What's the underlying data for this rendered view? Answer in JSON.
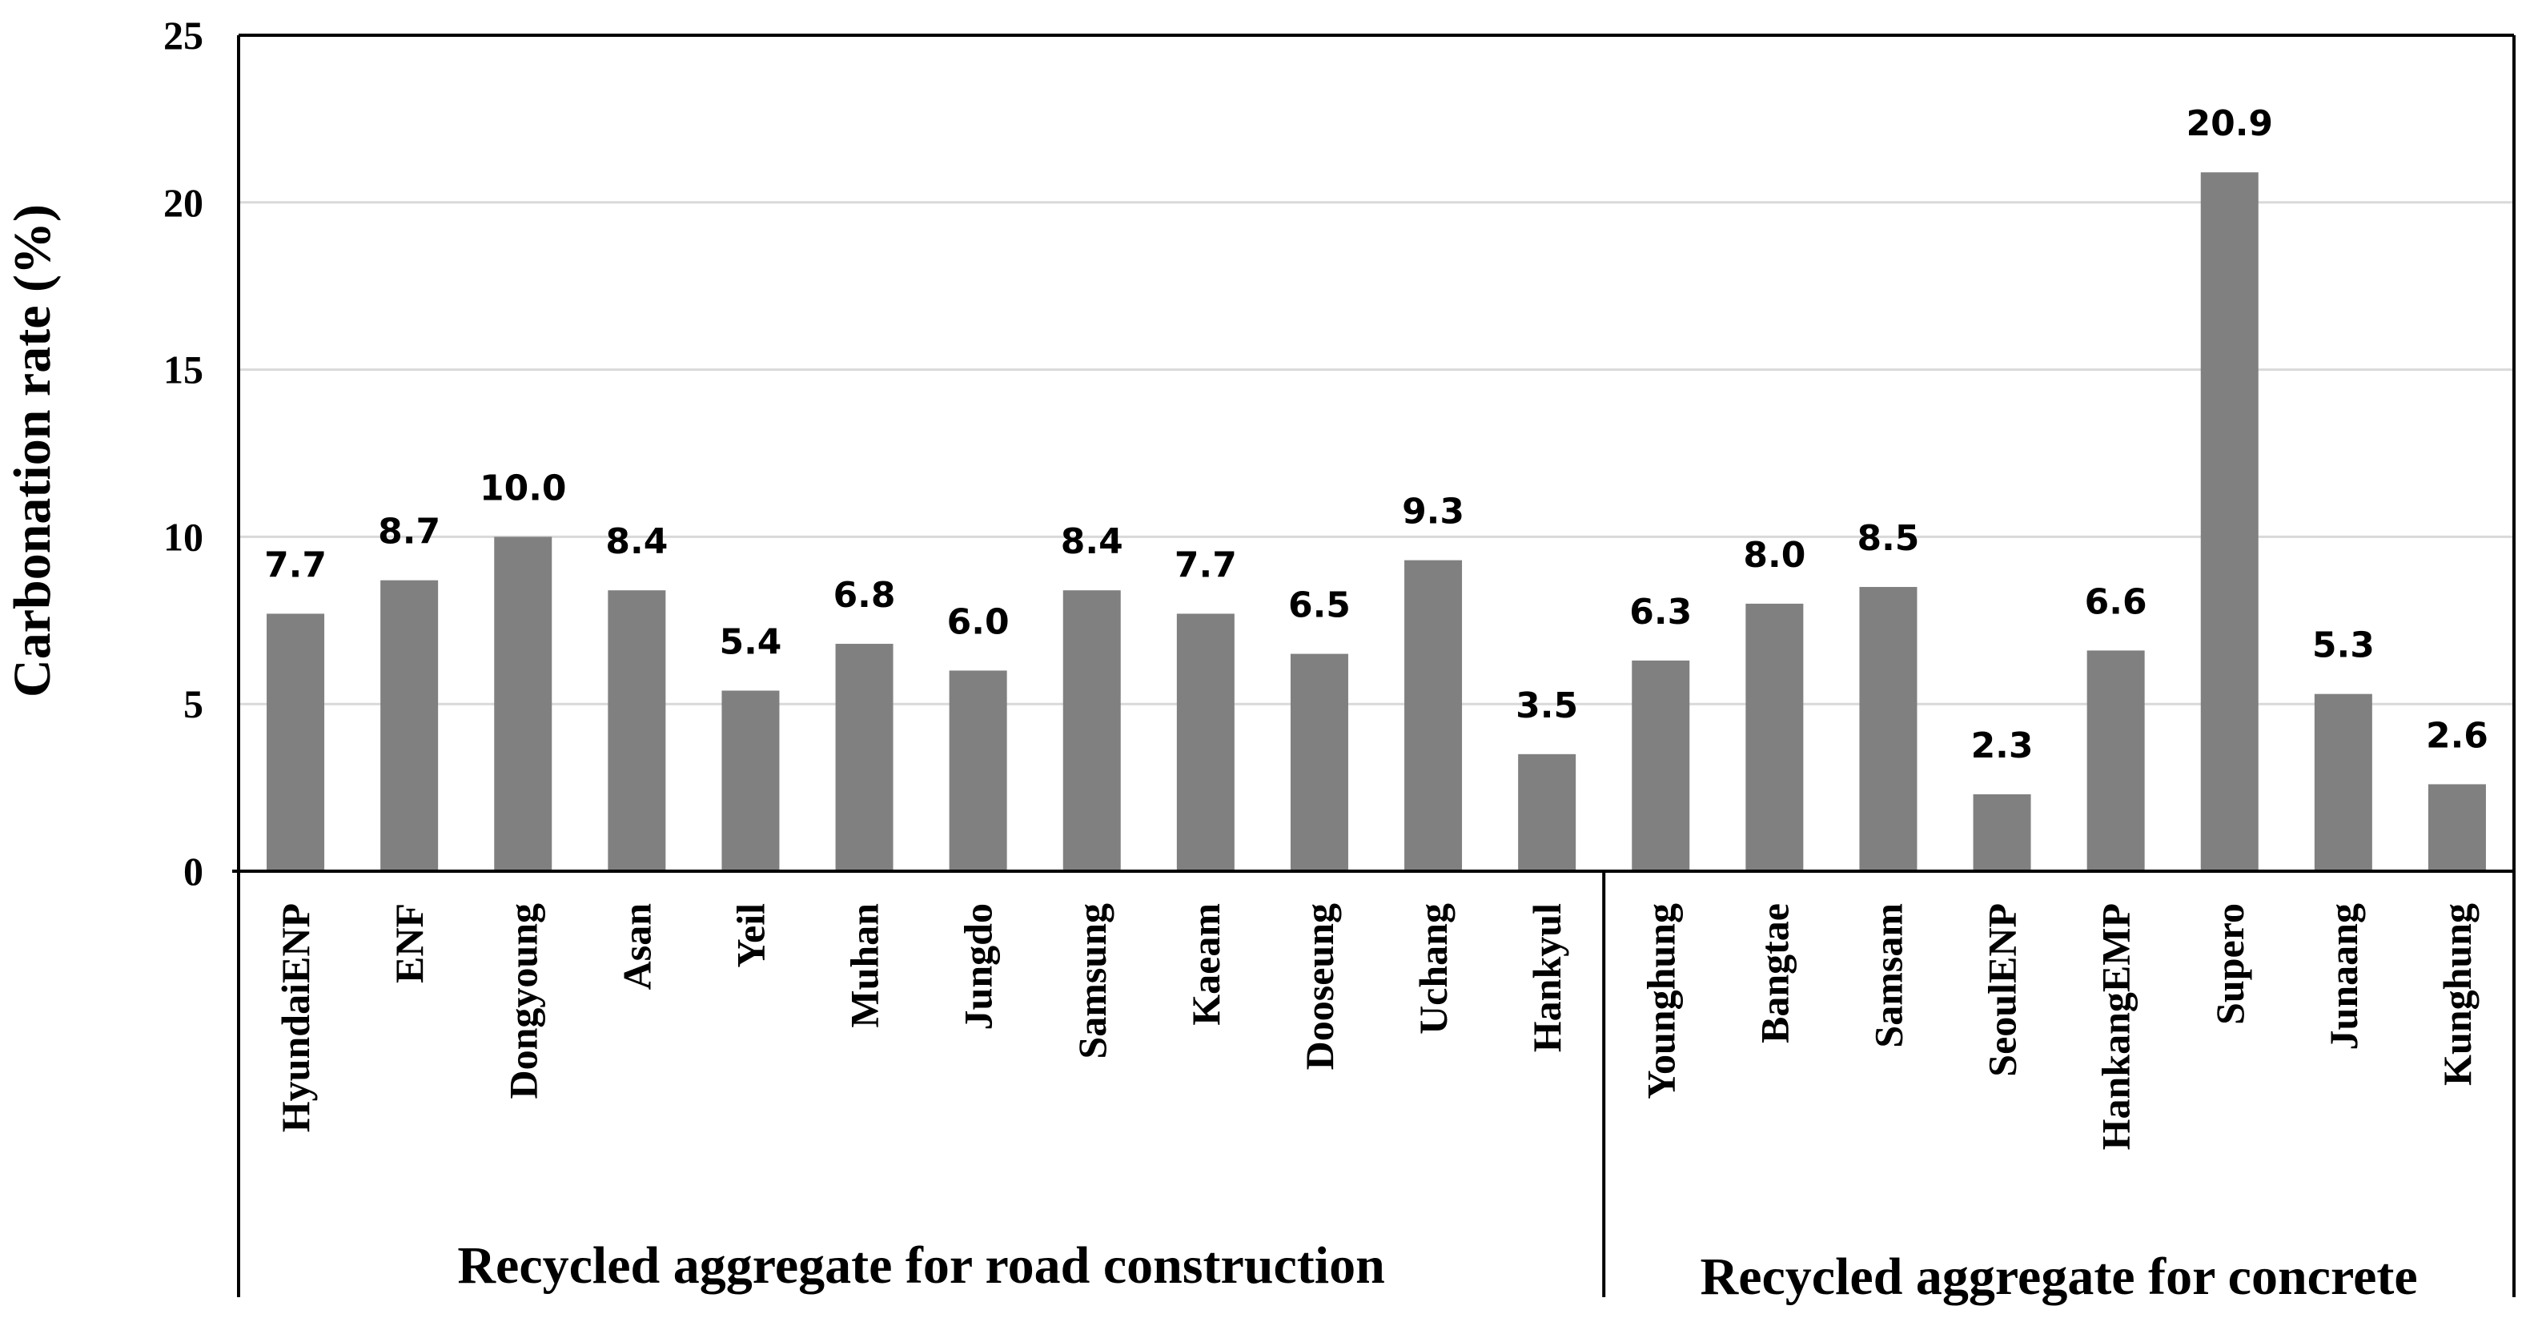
{
  "chart_data": {
    "type": "bar",
    "title": "",
    "xlabel": "",
    "ylabel": "Carbonation rate (%)",
    "ylim": [
      0,
      25
    ],
    "yticks": [
      0,
      5,
      10,
      15,
      20,
      25
    ],
    "grid": true,
    "bar_color": "#808080",
    "grid_color": "#d9d9d9",
    "categories": [
      "HyundaiENP",
      "ENF",
      "Dongyoung",
      "Asan",
      "Yeil",
      "Muhan",
      "Jungdo",
      "Samsung",
      "Kaeam",
      "Dooseung",
      "Uchang",
      "Hankyul",
      "Younghung",
      "Bangtae",
      "Samsam",
      "SeoulENP",
      "HankangEMP",
      "Supero",
      "Junaang",
      "Kunghung"
    ],
    "values": [
      7.7,
      8.7,
      10.0,
      8.4,
      5.4,
      6.8,
      6.0,
      8.4,
      7.7,
      6.5,
      9.3,
      3.5,
      6.3,
      8.0,
      8.5,
      2.3,
      6.6,
      20.9,
      5.3,
      2.6
    ],
    "data_labels": [
      "7.7",
      "8.7",
      "10.0",
      "8.4",
      "5.4",
      "6.8",
      "6.0",
      "8.4",
      "7.7",
      "6.5",
      "9.3",
      "3.5",
      "6.3",
      "8.0",
      "8.5",
      "2.3",
      "6.6",
      "20.9",
      "5.3",
      "2.6"
    ],
    "groups": [
      {
        "label": "Recycled aggregate for road construction",
        "count": 12
      },
      {
        "label": "Recycled aggregate for concrete",
        "count": 8
      }
    ]
  }
}
